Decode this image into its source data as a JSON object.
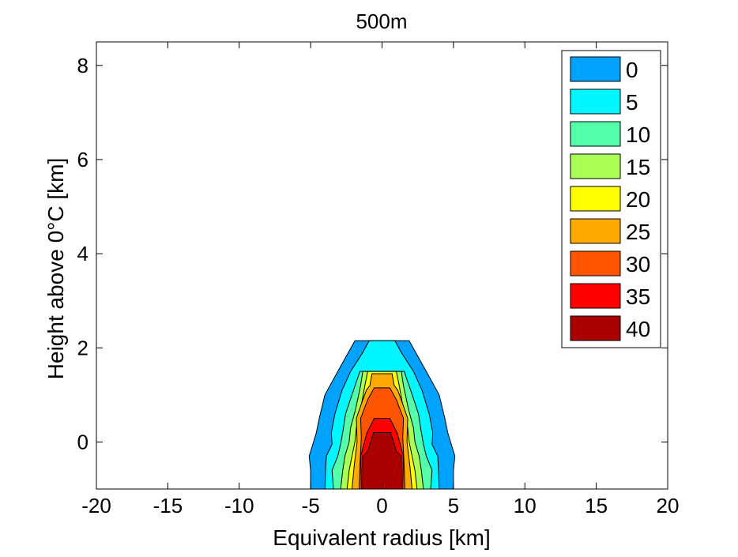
{
  "chart_data": {
    "type": "contour",
    "title": "500m",
    "xlabel": "Equivalent radius [km]",
    "ylabel": "Height above 0°C [km]",
    "xlim": [
      -20,
      20
    ],
    "ylim": [
      -1,
      8.5
    ],
    "x_ticks": [
      "-20",
      "-15",
      "-10",
      "-5",
      "0",
      "5",
      "10",
      "15",
      "20"
    ],
    "x_tick_values": [
      -20,
      -15,
      -10,
      -5,
      0,
      5,
      10,
      15,
      20
    ],
    "y_ticks": [
      "0",
      "2",
      "4",
      "6",
      "8"
    ],
    "y_tick_values": [
      0,
      2,
      4,
      6,
      8
    ],
    "grid": false,
    "legend_position": "top-right",
    "levels": [
      {
        "label": "0",
        "value": 0,
        "color": "#00a2ff",
        "outline": [
          [
            -2.2,
            2.15
          ],
          [
            -1.5,
            1.5
          ],
          [
            -1.2,
            1.0
          ],
          [
            -1.0,
            0.5
          ],
          [
            -0.9,
            0.3
          ],
          [
            -0.8,
            0.15
          ],
          [
            -0.4,
            -0.05
          ],
          [
            -0.25,
            -0.3
          ],
          [
            -0.2,
            -0.6
          ],
          [
            -0.15,
            -1.0
          ],
          [
            0.15,
            -1.0
          ],
          [
            0.2,
            -0.6
          ],
          [
            0.25,
            -0.3
          ],
          [
            0.4,
            -0.05
          ],
          [
            0.8,
            0.15
          ],
          [
            0.9,
            0.3
          ],
          [
            1.0,
            0.5
          ],
          [
            1.2,
            1.0
          ],
          [
            1.5,
            1.5
          ],
          [
            2.2,
            2.15
          ]
        ]
      },
      {
        "label": "5",
        "value": 5,
        "color": "#00f7ff",
        "outline": [
          [
            -0.15,
            2.15
          ],
          [
            -0.3,
            1.9
          ],
          [
            -0.3,
            1.5
          ],
          [
            -0.4,
            1.1
          ],
          [
            -0.55,
            0.6
          ],
          [
            -0.65,
            0.2
          ],
          [
            -0.55,
            -0.05
          ],
          [
            -0.75,
            -0.3
          ],
          [
            -0.7,
            -0.6
          ],
          [
            -0.75,
            -1.0
          ],
          [
            0.75,
            -1.0
          ],
          [
            0.7,
            -0.6
          ],
          [
            0.75,
            -0.3
          ],
          [
            0.55,
            -0.05
          ],
          [
            0.65,
            0.2
          ],
          [
            0.55,
            0.6
          ],
          [
            0.4,
            1.1
          ],
          [
            0.3,
            1.5
          ],
          [
            0.3,
            1.9
          ],
          [
            0.15,
            2.15
          ]
        ]
      },
      {
        "label": "10",
        "value": 10,
        "color": "#55ffaa",
        "outline": [
          [
            -0.1,
            1.8
          ],
          [
            -0.2,
            1.5
          ],
          [
            -0.2,
            1.1
          ],
          [
            -0.4,
            0.6
          ],
          [
            -0.45,
            0.3
          ],
          [
            -0.65,
            -0.05
          ],
          [
            -0.6,
            -0.3
          ],
          [
            -0.8,
            -0.6
          ],
          [
            -0.8,
            -1.0
          ],
          [
            0.8,
            -1.0
          ],
          [
            0.8,
            -0.6
          ],
          [
            0.6,
            -0.3
          ],
          [
            0.65,
            -0.05
          ],
          [
            0.45,
            0.3
          ],
          [
            0.4,
            0.6
          ],
          [
            0.2,
            1.1
          ],
          [
            0.2,
            1.5
          ],
          [
            0.1,
            1.8
          ]
        ]
      },
      {
        "label": "15",
        "value": 15,
        "color": "#aaff55",
        "outline": [
          [
            -0.1,
            1.5
          ],
          [
            -0.1,
            1.2
          ],
          [
            -0.15,
            0.7
          ],
          [
            -0.35,
            0.3
          ],
          [
            -0.35,
            0.0
          ],
          [
            -0.45,
            -0.3
          ],
          [
            -0.55,
            -0.6
          ],
          [
            -0.65,
            -1.0
          ],
          [
            0.65,
            -1.0
          ],
          [
            0.55,
            -0.6
          ],
          [
            0.45,
            -0.3
          ],
          [
            0.35,
            0.0
          ],
          [
            0.35,
            0.3
          ],
          [
            0.15,
            0.7
          ],
          [
            0.1,
            1.2
          ],
          [
            0.1,
            1.5
          ]
        ]
      },
      {
        "label": "20",
        "value": 20,
        "color": "#ffff00",
        "outline": [
          [
            -0.05,
            1.5
          ],
          [
            -0.1,
            1.2
          ],
          [
            -0.1,
            0.7
          ],
          [
            -0.3,
            0.3
          ],
          [
            -0.3,
            0.0
          ],
          [
            -0.35,
            -0.3
          ],
          [
            -0.4,
            -0.6
          ],
          [
            -0.45,
            -1.0
          ],
          [
            0.45,
            -1.0
          ],
          [
            0.4,
            -0.6
          ],
          [
            0.35,
            -0.3
          ],
          [
            0.3,
            0.0
          ],
          [
            0.3,
            0.3
          ],
          [
            0.1,
            0.7
          ],
          [
            0.1,
            1.2
          ],
          [
            0.05,
            1.5
          ]
        ]
      },
      {
        "label": "25",
        "value": 25,
        "color": "#ffaa00",
        "outline": [
          [
            -0.15,
            1.45
          ],
          [
            -0.15,
            1.2
          ],
          [
            -0.3,
            1.1
          ],
          [
            -0.35,
            0.85
          ],
          [
            -0.45,
            0.5
          ],
          [
            -0.3,
            0.0
          ],
          [
            -0.35,
            -0.5
          ],
          [
            -0.45,
            -1.0
          ],
          [
            0.45,
            -1.0
          ],
          [
            0.35,
            -0.5
          ],
          [
            0.3,
            0.0
          ],
          [
            0.45,
            0.5
          ],
          [
            0.35,
            0.85
          ],
          [
            0.3,
            1.1
          ],
          [
            0.15,
            1.2
          ],
          [
            0.15,
            1.45
          ]
        ]
      },
      {
        "label": "30",
        "value": 30,
        "color": "#ff5500",
        "outline": [
          [
            -0.5,
            1.15
          ],
          [
            -0.65,
            0.9
          ],
          [
            -0.6,
            0.5
          ],
          [
            -0.4,
            0.1
          ],
          [
            -0.4,
            -0.5
          ],
          [
            -0.4,
            -1.0
          ],
          [
            0.4,
            -1.0
          ],
          [
            0.4,
            -0.5
          ],
          [
            0.4,
            0.1
          ],
          [
            0.6,
            0.5
          ],
          [
            0.65,
            0.9
          ],
          [
            0.5,
            1.15
          ]
        ]
      },
      {
        "label": "35",
        "value": 35,
        "color": "#ff0000",
        "outline": [
          [
            -0.3,
            0.5
          ],
          [
            -0.6,
            0.2
          ],
          [
            -0.65,
            -0.3
          ],
          [
            -0.55,
            -1.0
          ],
          [
            0.55,
            -1.0
          ],
          [
            0.65,
            -0.3
          ],
          [
            0.6,
            0.2
          ],
          [
            0.3,
            0.5
          ]
        ]
      },
      {
        "label": "40",
        "value": 40,
        "color": "#aa0000",
        "outline": [
          [
            -0.6,
            0.2
          ],
          [
            -1.0,
            -0.2
          ],
          [
            -1.35,
            -0.3
          ],
          [
            -1.35,
            -1.0
          ],
          [
            1.35,
            -1.0
          ],
          [
            1.35,
            -0.3
          ],
          [
            1.0,
            -0.2
          ],
          [
            0.6,
            0.2
          ]
        ]
      }
    ]
  }
}
